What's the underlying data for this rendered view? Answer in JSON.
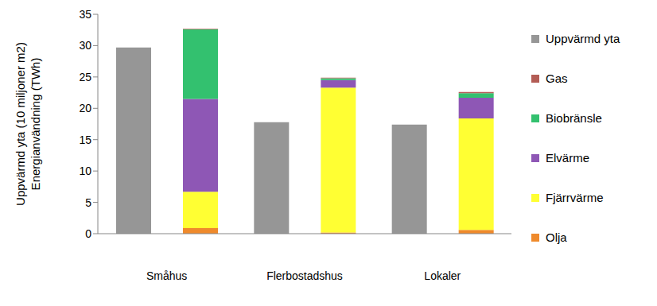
{
  "chart_data": {
    "type": "bar",
    "categories": [
      "Småhus",
      "Flerbostadshus",
      "Lokaler"
    ],
    "ylabel": [
      "Uppvärmd yta (10 miljoner m2)",
      "Energianvändning (TWh)"
    ],
    "ylim": [
      0,
      35
    ],
    "yticks": [
      0,
      5,
      10,
      15,
      20,
      25,
      30,
      35
    ],
    "grid": false,
    "legend": "right",
    "series": [
      {
        "name": "Uppvärmd yta",
        "color": "#969696",
        "stacked": false,
        "values": [
          29.7,
          17.8,
          17.4
        ]
      },
      {
        "name": "Gas",
        "color": "#b35c55",
        "stacked": true,
        "values": [
          0.1,
          0.1,
          0.2
        ]
      },
      {
        "name": "Biobränsle",
        "color": "#33c16f",
        "stacked": true,
        "values": [
          11.1,
          0.3,
          0.7
        ]
      },
      {
        "name": "Elvärme",
        "color": "#8e57b5",
        "stacked": true,
        "values": [
          14.8,
          1.2,
          3.3
        ]
      },
      {
        "name": "Fjärrvärme",
        "color": "#ffff33",
        "stacked": true,
        "values": [
          5.8,
          23.1,
          17.8
        ]
      },
      {
        "name": "Olja",
        "color": "#ef8a2c",
        "stacked": true,
        "values": [
          0.9,
          0.2,
          0.6
        ]
      }
    ]
  }
}
